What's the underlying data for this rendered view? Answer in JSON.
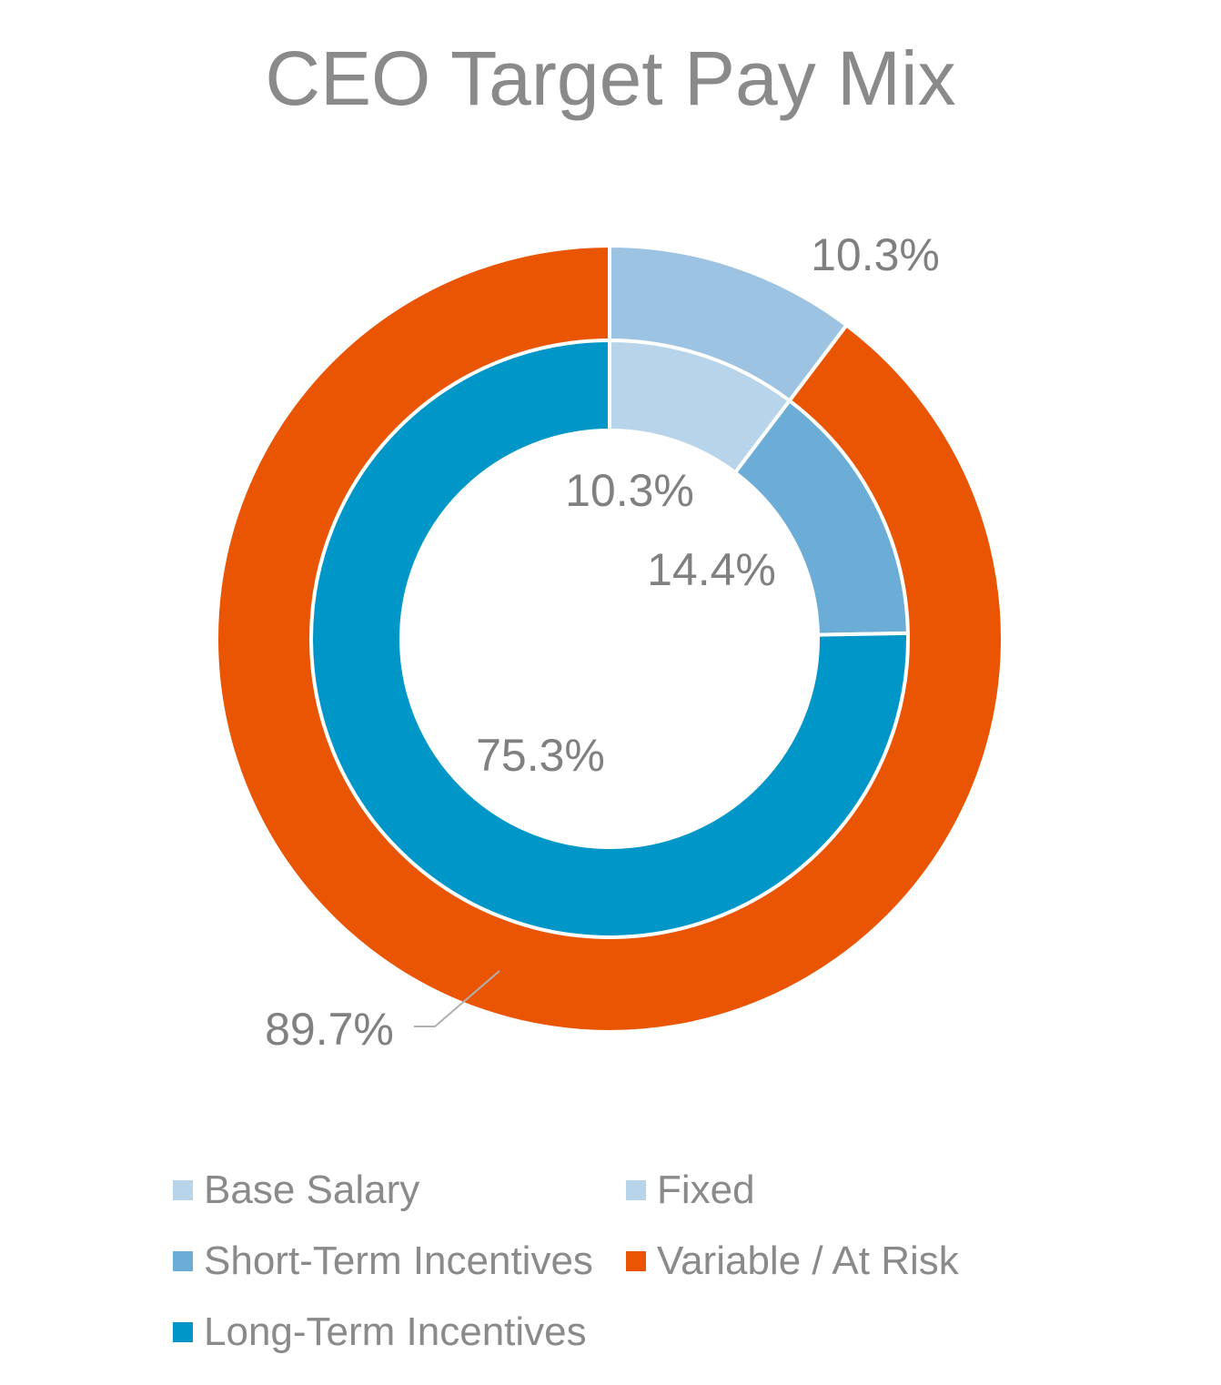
{
  "chart_data": {
    "type": "donut",
    "title": "CEO Target Pay Mix",
    "inner_ring": {
      "series": [
        {
          "name": "Base Salary",
          "value": 10.3,
          "label": "10.3%",
          "color": "#b8d4ea"
        },
        {
          "name": "Short-Term Incentives",
          "value": 14.4,
          "label": "14.4%",
          "color": "#6badd6"
        },
        {
          "name": "Long-Term Incentives",
          "value": 75.3,
          "label": "75.3%",
          "color": "#0096c7"
        }
      ]
    },
    "outer_ring": {
      "series": [
        {
          "name": "Fixed",
          "value": 10.3,
          "label": "10.3%",
          "color": "#9dc3e3"
        },
        {
          "name": "Variable / At Risk",
          "value": 89.7,
          "label": "89.7%",
          "color": "#ea5504"
        }
      ]
    },
    "legend": [
      {
        "name": "Base Salary",
        "color": "#b8d4ea"
      },
      {
        "name": "Fixed",
        "color": "#b8d4ea"
      },
      {
        "name": "Short-Term Incentives",
        "color": "#6badd6"
      },
      {
        "name": "Variable / At Risk",
        "color": "#ea5504"
      },
      {
        "name": "Long-Term Incentives",
        "color": "#0096c7"
      }
    ],
    "legend_position": "bottom"
  }
}
